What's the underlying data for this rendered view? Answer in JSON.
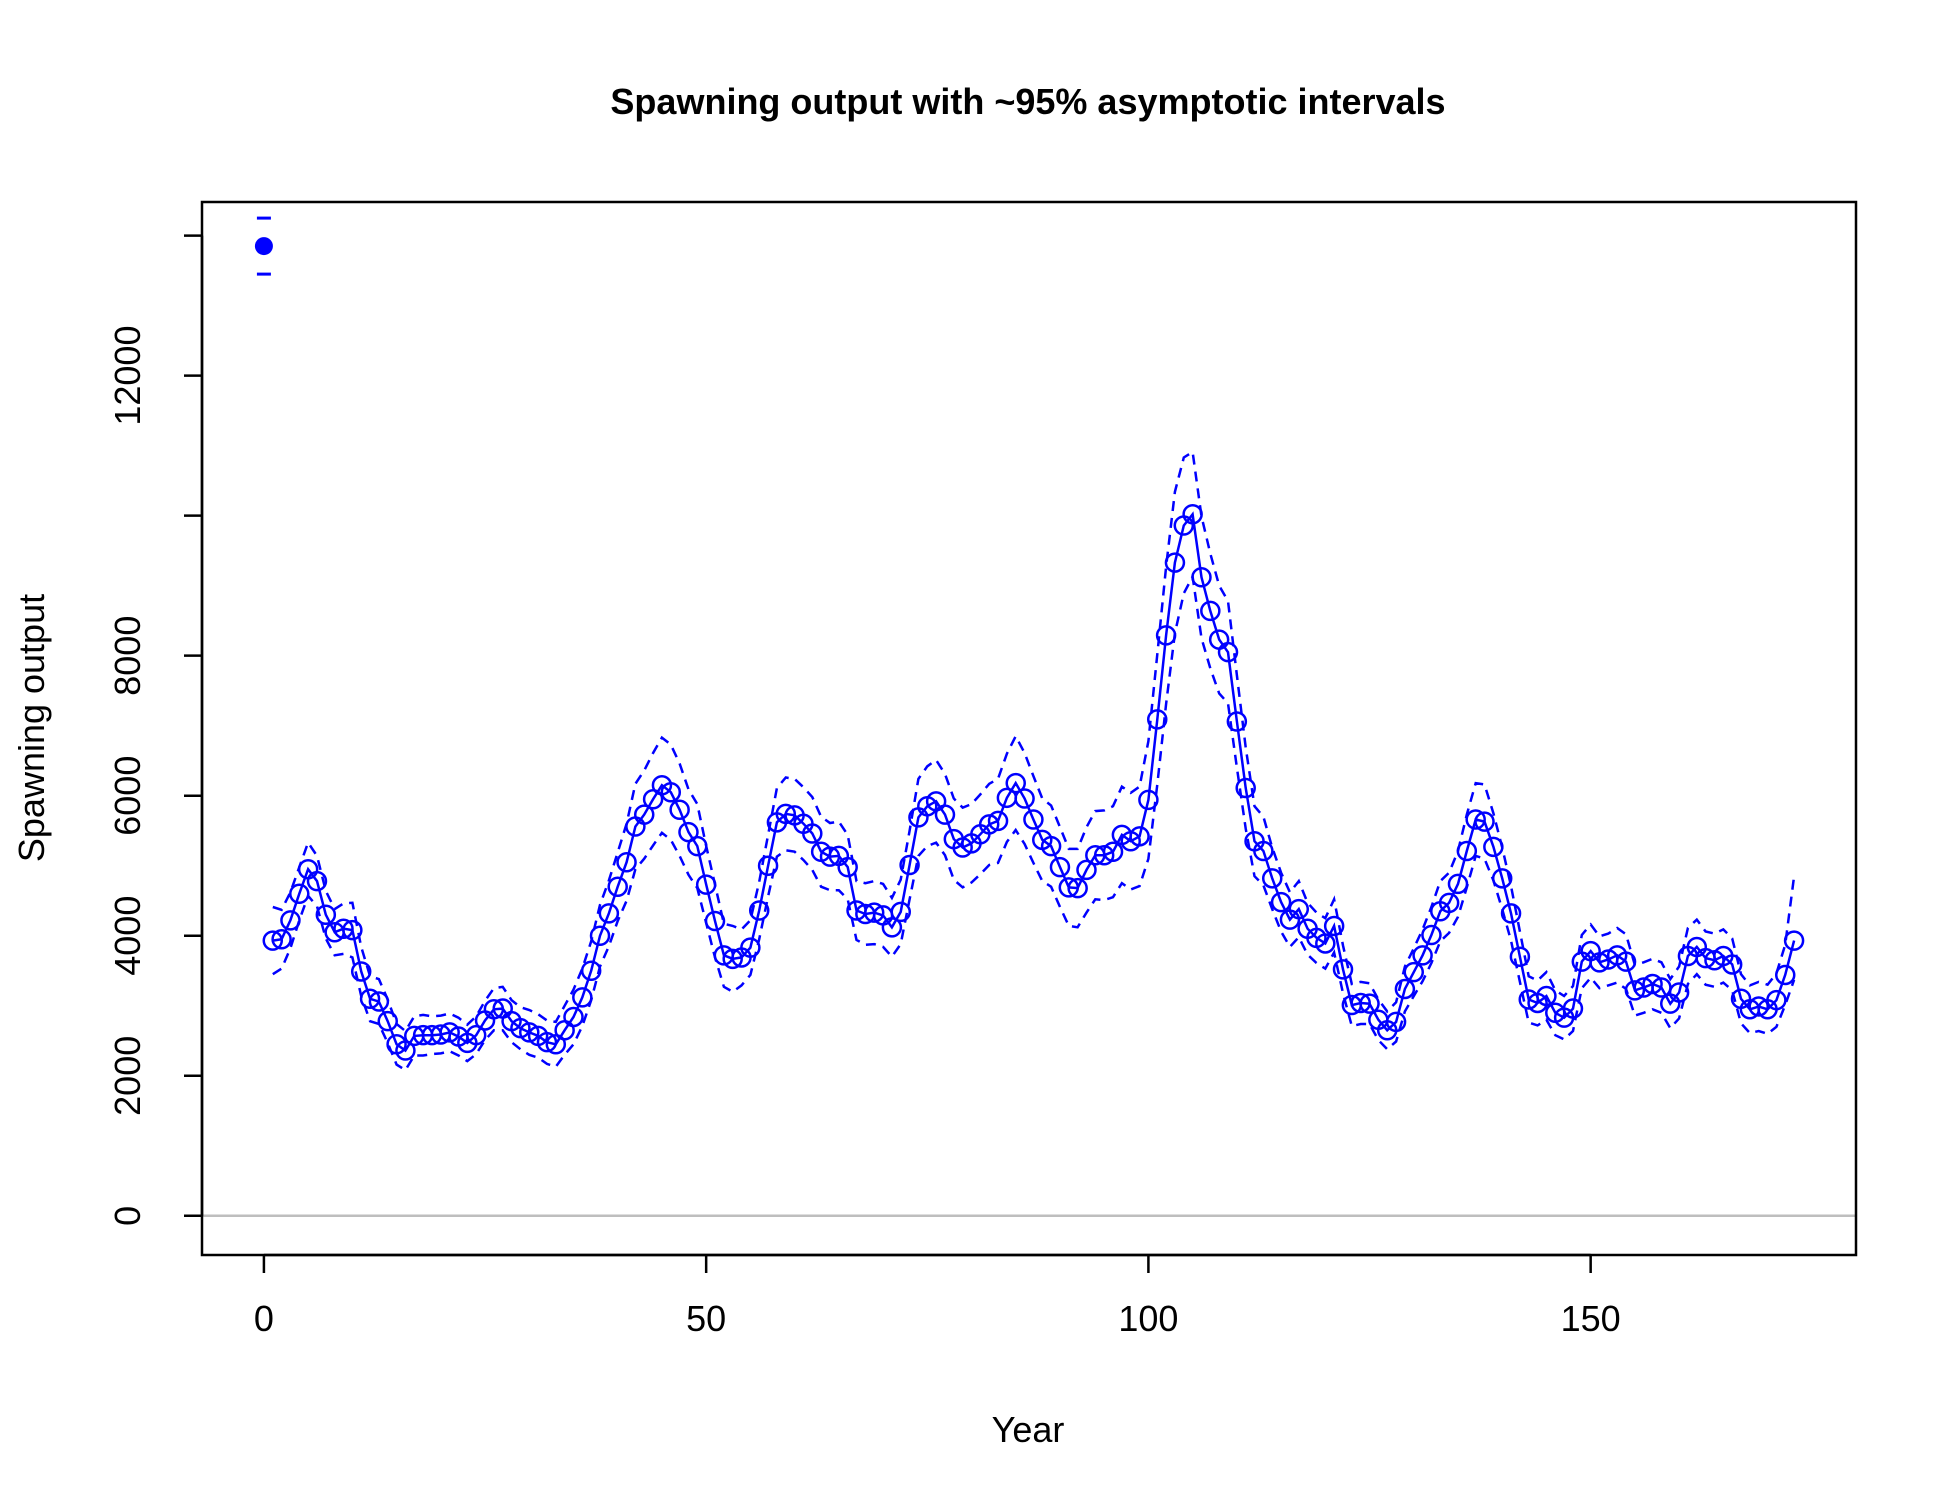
{
  "chart_data": {
    "type": "line",
    "title": "Spawning output with ~95% asymptotic intervals",
    "xlabel": "Year",
    "ylabel": "Spawning output",
    "xlim": [
      -7,
      180
    ],
    "ylim": [
      -560,
      14480
    ],
    "xticks": [
      0,
      50,
      100,
      150
    ],
    "yticks": [
      0,
      2000,
      4000,
      6000,
      8000,
      10000,
      12000,
      14000
    ],
    "ytick_labels_shown": [
      "0",
      "2000",
      "4000",
      "6000",
      "8000",
      "12000"
    ],
    "grid": false,
    "reference_line": {
      "y": 0,
      "color": "#bebebe"
    },
    "colors": {
      "series": "#0000ff",
      "zero_line": "#bebebe",
      "axis": "#000000"
    },
    "virgin_point": {
      "x": 0,
      "y": 13850,
      "lower": 13450,
      "upper": 14250
    },
    "series": {
      "x": [
        1,
        2,
        3,
        4,
        5,
        6,
        7,
        8,
        9,
        10,
        11,
        12,
        13,
        14,
        15,
        16,
        17,
        18,
        19,
        20,
        21,
        22,
        23,
        24,
        25,
        26,
        27,
        28,
        29,
        30,
        31,
        32,
        33,
        34,
        35,
        36,
        37,
        38,
        39,
        40,
        41,
        42,
        43,
        44,
        45,
        46,
        47,
        48,
        49,
        50,
        51,
        52,
        53,
        54,
        55,
        56,
        57,
        58,
        59,
        60,
        61,
        62,
        63,
        64,
        65,
        66,
        67,
        68,
        69,
        70,
        71,
        72,
        73,
        74,
        75,
        76,
        77,
        78,
        79,
        80,
        81,
        82,
        83,
        84,
        85,
        86,
        87,
        88,
        89,
        90,
        91,
        92,
        93,
        94,
        95,
        96,
        97,
        98,
        99,
        100,
        101,
        102,
        103,
        104,
        105,
        106,
        107,
        108,
        109,
        110,
        111,
        112,
        113,
        114,
        115,
        116,
        117,
        118,
        119,
        120,
        121,
        122,
        123,
        124,
        125,
        126,
        127,
        128,
        129,
        130,
        131,
        132,
        133,
        134,
        135,
        136,
        137,
        138,
        139,
        140,
        141,
        142,
        143,
        144,
        145,
        146,
        147,
        148,
        149,
        150,
        151,
        152,
        153,
        154,
        155,
        156,
        157,
        158,
        159,
        160,
        161,
        162,
        163,
        164,
        165,
        166,
        167,
        168,
        169,
        170,
        171,
        172,
        173
      ],
      "y": [
        3930,
        3950,
        4220,
        4600,
        4950,
        4780,
        4300,
        4050,
        4100,
        4080,
        3490,
        3100,
        3060,
        2780,
        2450,
        2360,
        2570,
        2580,
        2580,
        2590,
        2620,
        2560,
        2470,
        2580,
        2790,
        2950,
        2960,
        2780,
        2680,
        2620,
        2570,
        2480,
        2450,
        2650,
        2840,
        3120,
        3500,
        4000,
        4320,
        4700,
        5050,
        5560,
        5730,
        5950,
        6150,
        6050,
        5800,
        5480,
        5280,
        4730,
        4210,
        3720,
        3670,
        3690,
        3830,
        4360,
        5000,
        5620,
        5740,
        5720,
        5600,
        5460,
        5200,
        5130,
        5140,
        4980,
        4360,
        4310,
        4330,
        4290,
        4120,
        4340,
        5010,
        5690,
        5850,
        5920,
        5730,
        5380,
        5260,
        5320,
        5450,
        5590,
        5640,
        5970,
        6180,
        5960,
        5660,
        5370,
        5280,
        4980,
        4690,
        4680,
        4940,
        5150,
        5150,
        5200,
        5440,
        5350,
        5420,
        5940,
        7090,
        8290,
        9330,
        9860,
        10020,
        9120,
        8640,
        8230,
        8050,
        7060,
        6110,
        5350,
        5210,
        4820,
        4480,
        4230,
        4380,
        4100,
        3970,
        3890,
        4140,
        3520,
        3010,
        3040,
        3030,
        2800,
        2650,
        2770,
        3240,
        3480,
        3720,
        4010,
        4350,
        4470,
        4740,
        5210,
        5660,
        5630,
        5270,
        4820,
        4320,
        3700,
        3090,
        3040,
        3140,
        2900,
        2830,
        2960,
        3630,
        3780,
        3620,
        3660,
        3720,
        3630,
        3220,
        3260,
        3310,
        3260,
        3030,
        3190,
        3710,
        3840,
        3680,
        3650,
        3710,
        3590,
        3100,
        2950,
        2990,
        2950,
        3080,
        3440,
        3930
      ],
      "lower": [
        3450,
        3530,
        3820,
        4220,
        4570,
        4420,
        3960,
        3720,
        3740,
        3690,
        3140,
        2780,
        2740,
        2470,
        2160,
        2080,
        2290,
        2290,
        2310,
        2320,
        2350,
        2290,
        2210,
        2310,
        2510,
        2650,
        2650,
        2480,
        2380,
        2300,
        2260,
        2170,
        2130,
        2300,
        2450,
        2710,
        3080,
        3560,
        3850,
        4210,
        4500,
        4950,
        5100,
        5290,
        5470,
        5370,
        5140,
        4870,
        4680,
        4180,
        3690,
        3270,
        3200,
        3290,
        3440,
        3950,
        4560,
        5130,
        5220,
        5200,
        5080,
        4940,
        4700,
        4650,
        4650,
        4520,
        3940,
        3870,
        3880,
        3840,
        3700,
        3880,
        4520,
        5140,
        5280,
        5330,
        5150,
        4800,
        4690,
        4760,
        4880,
        5010,
        5040,
        5340,
        5510,
        5310,
        5040,
        4780,
        4700,
        4410,
        4140,
        4120,
        4330,
        4520,
        4510,
        4550,
        4750,
        4660,
        4710,
        5100,
        6160,
        7310,
        8320,
        8890,
        9130,
        8250,
        7820,
        7460,
        7320,
        6400,
        5530,
        4850,
        4720,
        4380,
        4060,
        3840,
        3980,
        3730,
        3610,
        3530,
        3760,
        3180,
        2710,
        2740,
        2740,
        2510,
        2380,
        2490,
        2920,
        3140,
        3350,
        3610,
        3920,
        4040,
        4270,
        4690,
        5140,
        5100,
        4790,
        4380,
        3930,
        3340,
        2760,
        2720,
        2800,
        2580,
        2520,
        2640,
        3250,
        3400,
        3250,
        3290,
        3330,
        3240,
        2860,
        2900,
        2950,
        2900,
        2680,
        2820,
        3310,
        3450,
        3300,
        3270,
        3330,
        3220,
        2750,
        2610,
        2640,
        2600,
        2700,
        3010,
        3370
      ],
      "upper": [
        4410,
        4370,
        4620,
        4980,
        5330,
        5140,
        4640,
        4380,
        4460,
        4470,
        3840,
        3420,
        3380,
        3090,
        2740,
        2640,
        2850,
        2870,
        2850,
        2860,
        2890,
        2830,
        2730,
        2850,
        3070,
        3250,
        3270,
        3080,
        2980,
        2940,
        2880,
        2790,
        2770,
        3000,
        3230,
        3530,
        3920,
        4440,
        4790,
        5190,
        5600,
        6170,
        6360,
        6610,
        6830,
        6730,
        6460,
        6090,
        5880,
        5280,
        4730,
        4170,
        4140,
        4090,
        4220,
        4770,
        5440,
        6110,
        6260,
        6240,
        6120,
        5980,
        5700,
        5610,
        5630,
        5440,
        4780,
        4750,
        4780,
        4740,
        4540,
        4800,
        5500,
        6240,
        6420,
        6510,
        6310,
        5960,
        5830,
        5880,
        6020,
        6170,
        6240,
        6600,
        6850,
        6610,
        6280,
        5960,
        5860,
        5550,
        5240,
        5240,
        5550,
        5780,
        5790,
        5850,
        6130,
        6040,
        6130,
        6780,
        8020,
        9270,
        10340,
        10830,
        10910,
        9990,
        9460,
        9000,
        8780,
        7720,
        6690,
        5850,
        5700,
        5260,
        4900,
        4620,
        4780,
        4470,
        4330,
        4250,
        4520,
        3860,
        3310,
        3340,
        3320,
        3090,
        2920,
        3050,
        3560,
        3820,
        4090,
        4410,
        4780,
        4900,
        5210,
        5730,
        6180,
        6160,
        5750,
        5260,
        4710,
        4060,
        3420,
        3360,
        3480,
        3220,
        3140,
        3280,
        4010,
        4160,
        3990,
        4030,
        4110,
        4020,
        3580,
        3620,
        3670,
        3620,
        3380,
        3560,
        4110,
        4230,
        4060,
        4030,
        4090,
        3960,
        3450,
        3290,
        3340,
        3300,
        3460,
        3870,
        4850
      ]
    }
  }
}
